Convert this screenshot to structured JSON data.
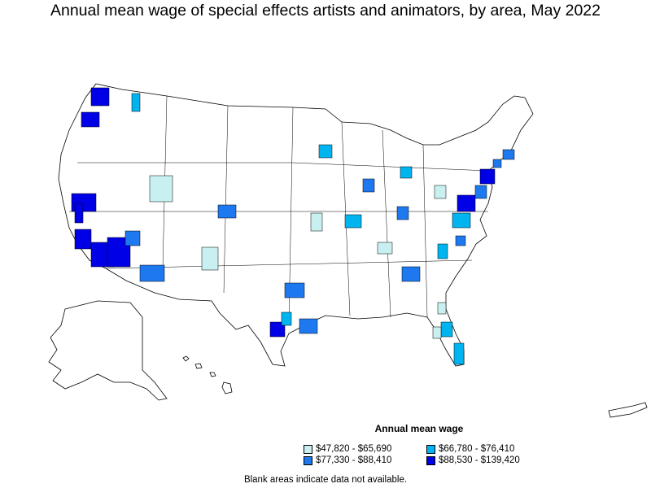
{
  "title": "Annual mean wage of special effects artists and animators, by area, May 2022",
  "legend": {
    "title": "Annual mean wage",
    "items": [
      {
        "label": "$47,820 - $65,690",
        "color": "#c8f0f0"
      },
      {
        "label": "$66,780 - $76,410",
        "color": "#00b4f0"
      },
      {
        "label": "$77,330 - $88,410",
        "color": "#1e78f0"
      },
      {
        "label": "$88,530 - $139,420",
        "color": "#0000e6"
      }
    ]
  },
  "note": "Blank areas indicate data not available."
}
